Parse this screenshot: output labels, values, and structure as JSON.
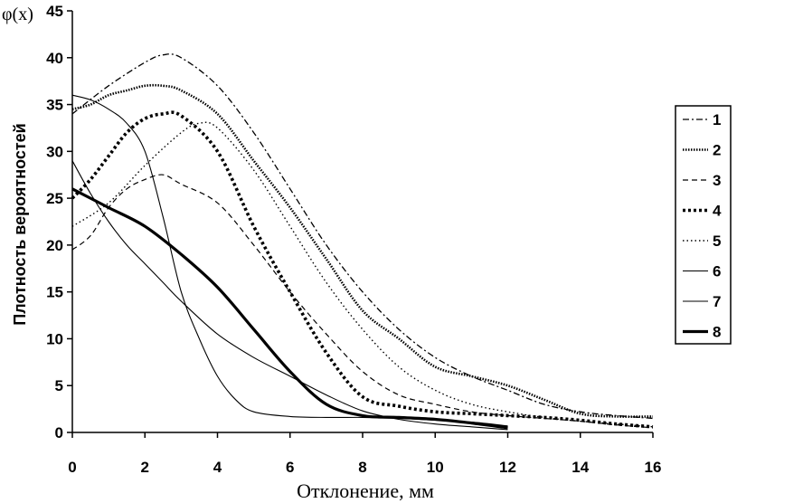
{
  "chart_data": {
    "type": "line",
    "y_top_label": "φ(x)",
    "ylabel": "Плотность вероятностей",
    "xlabel": "Отклонение, мм",
    "xlim": [
      0,
      16
    ],
    "ylim": [
      0,
      45
    ],
    "x_ticks": [
      0,
      2,
      4,
      6,
      8,
      10,
      12,
      14,
      16
    ],
    "y_ticks": [
      0,
      5,
      10,
      15,
      20,
      25,
      30,
      35,
      40,
      45
    ],
    "grid": false,
    "legend_position": "right",
    "series": [
      {
        "name": "1",
        "style": "dashed-short",
        "x": [
          0,
          1,
          2,
          2.5,
          3,
          4,
          5,
          6,
          7,
          8,
          9,
          10,
          11,
          12,
          13,
          14,
          15,
          16
        ],
        "y": [
          34,
          37,
          39.5,
          40.3,
          40,
          37,
          32,
          26,
          20,
          15,
          11,
          8,
          6,
          4.5,
          3,
          2.2,
          1.8,
          1.5
        ]
      },
      {
        "name": "2",
        "style": "dense-dotted",
        "x": [
          0,
          0.5,
          1,
          1.5,
          2,
          2.5,
          3,
          4,
          5,
          6,
          7,
          8,
          9,
          10,
          11,
          12,
          13,
          14,
          15,
          16
        ],
        "y": [
          34.5,
          35,
          36,
          36.5,
          37,
          37,
          36.5,
          34,
          29,
          24,
          18.5,
          13,
          10,
          7,
          6,
          5,
          3.5,
          2,
          1.7,
          1.7
        ]
      },
      {
        "name": "3",
        "style": "dashed",
        "x": [
          0,
          0.5,
          1,
          1.5,
          2,
          2.5,
          3,
          4,
          5,
          6,
          7,
          8,
          9,
          10,
          11,
          12,
          13,
          14,
          15,
          16
        ],
        "y": [
          19.5,
          21,
          24,
          26,
          27,
          27.5,
          26.5,
          24.5,
          20,
          15,
          10.5,
          6.5,
          4,
          3,
          2.2,
          1.8,
          1.5,
          1.2,
          0.8,
          0.5
        ]
      },
      {
        "name": "4",
        "style": "bold-dotted",
        "x": [
          0,
          0.5,
          1,
          1.5,
          2,
          2.5,
          3,
          4,
          5,
          6,
          7,
          8,
          9,
          10,
          11,
          12,
          13,
          14,
          15,
          16
        ],
        "y": [
          25,
          27,
          29.5,
          32,
          33.5,
          34,
          33.8,
          30,
          22,
          15,
          8.5,
          3.8,
          2.8,
          2.2,
          2,
          1.8,
          1.6,
          1.3,
          0.9,
          0.6
        ]
      },
      {
        "name": "5",
        "style": "dotted",
        "x": [
          0,
          1,
          2,
          3,
          3.5,
          4,
          5,
          6,
          7,
          8,
          9,
          10,
          11,
          12,
          13,
          14,
          15,
          16
        ],
        "y": [
          22,
          24.5,
          28.5,
          32,
          33,
          32.5,
          28,
          22,
          16,
          11,
          7,
          4.5,
          3,
          2.2,
          1.6,
          1.2,
          0.9,
          0.6
        ]
      },
      {
        "name": "6",
        "style": "thin",
        "x": [
          0,
          0.5,
          1,
          1.5,
          2,
          2.5,
          3,
          3.5,
          4,
          4.5,
          5,
          6,
          7,
          8,
          9,
          10,
          11,
          12
        ],
        "y": [
          36,
          35.5,
          34.5,
          33,
          30,
          23,
          15,
          10,
          6,
          3.5,
          2.2,
          1.7,
          1.6,
          1.6,
          1.5,
          1.3,
          1.1,
          0.7
        ]
      },
      {
        "name": "7",
        "style": "thin",
        "x": [
          0,
          0.5,
          1,
          1.5,
          2,
          2.5,
          3,
          4,
          5,
          6,
          7,
          8,
          9,
          10,
          11,
          12
        ],
        "y": [
          29,
          25.5,
          22.5,
          20,
          18,
          16,
          14,
          10.5,
          8,
          6,
          4,
          2.3,
          1.4,
          0.9,
          0.6,
          0.3
        ]
      },
      {
        "name": "8",
        "style": "thick",
        "x": [
          0,
          1,
          2,
          3,
          4,
          5,
          6,
          7,
          8,
          9,
          10,
          11,
          12
        ],
        "y": [
          26,
          24,
          22,
          19,
          15.5,
          11,
          6.5,
          3,
          1.8,
          1.6,
          1.4,
          1,
          0.5
        ]
      }
    ]
  }
}
